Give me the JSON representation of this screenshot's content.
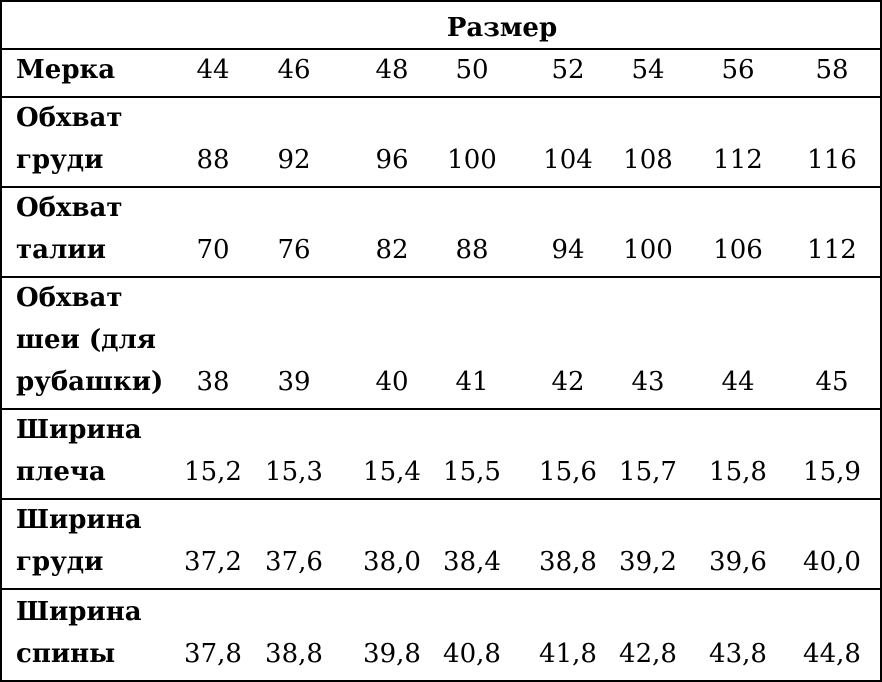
{
  "header": {
    "title": "Размер"
  },
  "table": {
    "rows": [
      {
        "label": [
          "Мерка"
        ],
        "values": [
          "44",
          "46",
          "48",
          "50",
          "52",
          "54",
          "56",
          "58"
        ]
      },
      {
        "label": [
          "Обхват",
          "груди"
        ],
        "values": [
          "88",
          "92",
          "96",
          "100",
          "104",
          "108",
          "112",
          "116"
        ]
      },
      {
        "label": [
          "Обхват",
          "талии"
        ],
        "values": [
          "70",
          "76",
          "82",
          "88",
          "94",
          "100",
          "106",
          "112"
        ]
      },
      {
        "label": [
          "Обхват",
          "шеи (для",
          "рубашки)"
        ],
        "values": [
          "38",
          "39",
          "40",
          "41",
          "42",
          "43",
          "44",
          "45"
        ]
      },
      {
        "label": [
          "Ширина",
          "плеча"
        ],
        "values": [
          "15,2",
          "15,3",
          "15,4",
          "15,5",
          "15,6",
          "15,7",
          "15,8",
          "15,9"
        ]
      },
      {
        "label": [
          "Ширина",
          "груди"
        ],
        "values": [
          "37,2",
          "37,6",
          "38,0",
          "38,4",
          "38,8",
          "39,2",
          "39,6",
          "40,0"
        ]
      },
      {
        "label": [
          "Ширина",
          "спины"
        ],
        "values": [
          "37,8",
          "38,8",
          "39,8",
          "40,8",
          "41,8",
          "42,8",
          "43,8",
          "44,8"
        ]
      }
    ]
  }
}
